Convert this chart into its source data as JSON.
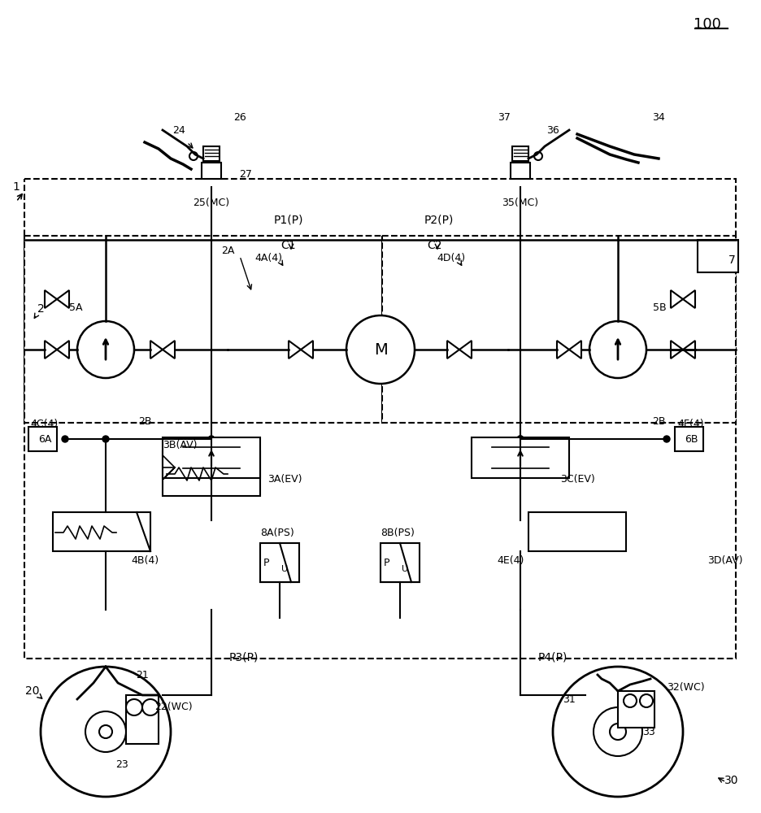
{
  "title": "100",
  "bg_color": "#ffffff",
  "line_color": "#000000",
  "label_1": "1",
  "label_2": "2",
  "label_7": "7",
  "label_20": "20",
  "label_21": "21",
  "label_22WC": "22(WC)",
  "label_23": "23",
  "label_24": "24",
  "label_25MC": "25(MC)",
  "label_26": "26",
  "label_27": "27",
  "label_2A": "2A",
  "label_2B": "2B",
  "label_30": "30",
  "label_31": "31",
  "label_32WC": "32(WC)",
  "label_33": "33",
  "label_34": "34",
  "label_35MC": "35(MC)",
  "label_36": "36",
  "label_37": "37",
  "label_3A": "3A(EV)",
  "label_3B": "3B(AV)",
  "label_3C": "3C(EV)",
  "label_3D": "3D(AV)",
  "label_4A": "4A(4)",
  "label_4B": "4B(4)",
  "label_4C": "4C(4)",
  "label_4D": "4D(4)",
  "label_4E": "4E(4)",
  "label_4F": "4F(4)",
  "label_5A": "5A",
  "label_5B": "5B",
  "label_6A": "6A",
  "label_6B": "6B",
  "label_8A": "8A(PS)",
  "label_8B": "8B(PS)",
  "label_C1": "C1",
  "label_C2": "C2",
  "label_M": "M",
  "label_P1": "P1(P)",
  "label_P2": "P2(P)",
  "label_P3": "P3(P)",
  "label_P4": "P4(P)"
}
